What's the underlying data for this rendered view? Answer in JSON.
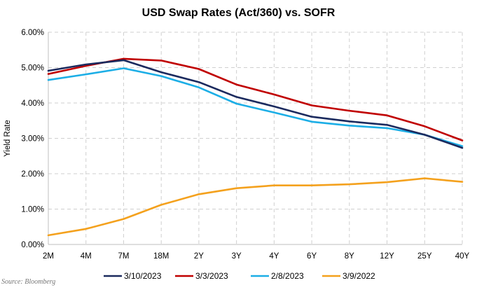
{
  "chart_data": {
    "type": "line",
    "title": "USD Swap Rates (Act/360) vs. SOFR",
    "xlabel": "",
    "ylabel": "Yield Rate",
    "categories": [
      "2M",
      "4M",
      "7M",
      "18M",
      "2Y",
      "3Y",
      "4Y",
      "6Y",
      "8Y",
      "12Y",
      "25Y",
      "40Y"
    ],
    "ylim": [
      0,
      6
    ],
    "yticks": [
      "0.00%",
      "1.00%",
      "2.00%",
      "3.00%",
      "4.00%",
      "5.00%",
      "6.00%"
    ],
    "grid": true,
    "legend_position": "bottom",
    "series": [
      {
        "name": "3/10/2023",
        "color": "#1b2a5e",
        "values": [
          4.91,
          5.09,
          5.21,
          4.87,
          4.59,
          4.17,
          3.9,
          3.61,
          3.48,
          3.38,
          3.1,
          2.73
        ]
      },
      {
        "name": "3/3/2023",
        "color": "#c00000",
        "values": [
          4.82,
          5.05,
          5.25,
          5.2,
          4.96,
          4.52,
          4.24,
          3.93,
          3.78,
          3.65,
          3.34,
          2.94
        ]
      },
      {
        "name": "2/8/2023",
        "color": "#1caee6",
        "values": [
          4.65,
          4.81,
          4.98,
          4.76,
          4.44,
          3.98,
          3.73,
          3.47,
          3.36,
          3.29,
          3.1,
          2.78
        ]
      },
      {
        "name": "3/9/2022",
        "color": "#f4a11d",
        "values": [
          0.26,
          0.44,
          0.72,
          1.12,
          1.42,
          1.59,
          1.67,
          1.67,
          1.7,
          1.76,
          1.87,
          1.77
        ]
      }
    ]
  },
  "source": "Source: Bloomberg"
}
